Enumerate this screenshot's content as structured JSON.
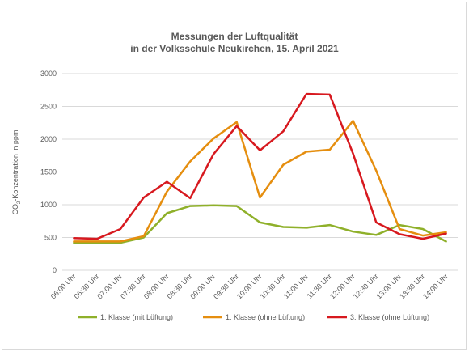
{
  "title_line1": "Messungen der Luftqualität",
  "title_line2": "in der Volksschule Neukirchen, 15. April 2021",
  "chart_data": {
    "type": "line",
    "title": "Messungen der Luftqualität in der Volksschule Neukirchen, 15. April 2021",
    "ylabel_main": "CO",
    "ylabel_sub": "2",
    "ylabel_rest": "-Konzentration in ppm",
    "ylim": [
      0,
      3000
    ],
    "yticks": [
      0,
      500,
      1000,
      1500,
      2000,
      2500,
      3000
    ],
    "ytick_labels": [
      "0",
      "500",
      "1000",
      "1500",
      "2000",
      "2500",
      "3000"
    ],
    "grid": true,
    "legend": "bottom",
    "categories": [
      "06:00 Uhr",
      "06:30 Uhr",
      "07:00 Uhr",
      "07:30 Uhr",
      "08:00 Uhr",
      "08:30 Uhr",
      "09:00 Uhr",
      "09:30 Uhr",
      "10:00 Uhr",
      "10:30 Uhr",
      "11:00 Uhr",
      "11:30 Uhr",
      "12:00 Uhr",
      "12:30 Uhr",
      "13:00 Uhr",
      "13:30 Uhr",
      "14:00 Uhr"
    ],
    "series": [
      {
        "name": "1. Klasse (mit Lüftung)",
        "color": "#8fb02a",
        "values": [
          420,
          420,
          420,
          500,
          870,
          980,
          990,
          980,
          730,
          660,
          650,
          690,
          590,
          540,
          690,
          630,
          440
        ]
      },
      {
        "name": "1. Klasse (ohne Lüftung)",
        "color": "#e58e0f",
        "values": [
          440,
          440,
          440,
          520,
          1200,
          1660,
          2010,
          2260,
          1110,
          1610,
          1810,
          1840,
          2280,
          1520,
          630,
          530,
          580
        ]
      },
      {
        "name": "3. Klasse (ohne Lüftung)",
        "color": "#d7191f",
        "values": [
          490,
          480,
          630,
          1110,
          1350,
          1100,
          1770,
          2200,
          1830,
          2120,
          2690,
          2680,
          1780,
          730,
          550,
          480,
          560
        ]
      }
    ]
  }
}
